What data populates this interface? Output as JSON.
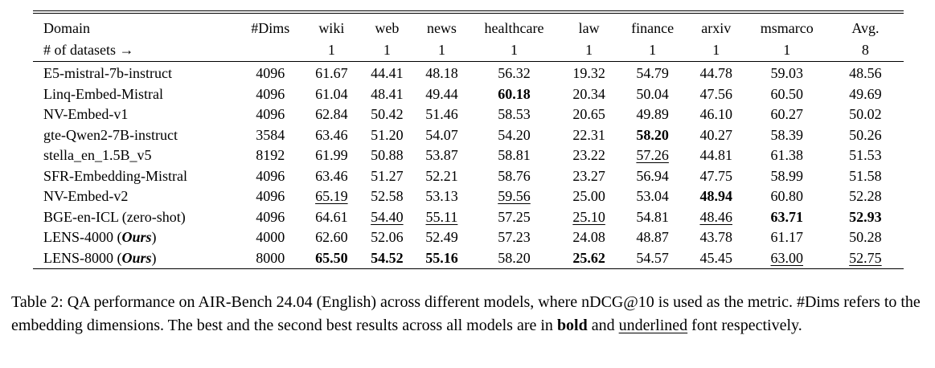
{
  "table": {
    "columns": [
      "Domain",
      "#Dims",
      "wiki",
      "web",
      "news",
      "healthcare",
      "law",
      "finance",
      "arxiv",
      "msmarco",
      "Avg."
    ],
    "datasets_label": "# of datasets →",
    "datasets_counts": [
      "",
      "1",
      "1",
      "1",
      "1",
      "1",
      "1",
      "1",
      "1",
      "8"
    ],
    "rows": [
      {
        "name": "E5-mistral-7b-instruct",
        "dims": "4096",
        "scores": [
          [
            "61.67",
            ""
          ],
          [
            "44.41",
            ""
          ],
          [
            "48.18",
            ""
          ],
          [
            "56.32",
            ""
          ],
          [
            "19.32",
            ""
          ],
          [
            "54.79",
            ""
          ],
          [
            "44.78",
            ""
          ],
          [
            "59.03",
            ""
          ],
          [
            "48.56",
            ""
          ]
        ]
      },
      {
        "name": "Linq-Embed-Mistral",
        "dims": "4096",
        "scores": [
          [
            "61.04",
            ""
          ],
          [
            "48.41",
            ""
          ],
          [
            "49.44",
            ""
          ],
          [
            "60.18",
            "b"
          ],
          [
            "20.34",
            ""
          ],
          [
            "50.04",
            ""
          ],
          [
            "47.56",
            ""
          ],
          [
            "60.50",
            ""
          ],
          [
            "49.69",
            ""
          ]
        ]
      },
      {
        "name": "NV-Embed-v1",
        "dims": "4096",
        "scores": [
          [
            "62.84",
            ""
          ],
          [
            "50.42",
            ""
          ],
          [
            "51.46",
            ""
          ],
          [
            "58.53",
            ""
          ],
          [
            "20.65",
            ""
          ],
          [
            "49.89",
            ""
          ],
          [
            "46.10",
            ""
          ],
          [
            "60.27",
            ""
          ],
          [
            "50.02",
            ""
          ]
        ]
      },
      {
        "name": "gte-Qwen2-7B-instruct",
        "dims": "3584",
        "scores": [
          [
            "63.46",
            ""
          ],
          [
            "51.20",
            ""
          ],
          [
            "54.07",
            ""
          ],
          [
            "54.20",
            ""
          ],
          [
            "22.31",
            ""
          ],
          [
            "58.20",
            "b"
          ],
          [
            "40.27",
            ""
          ],
          [
            "58.39",
            ""
          ],
          [
            "50.26",
            ""
          ]
        ]
      },
      {
        "name": "stella_en_1.5B_v5",
        "dims": "8192",
        "scores": [
          [
            "61.99",
            ""
          ],
          [
            "50.88",
            ""
          ],
          [
            "53.87",
            ""
          ],
          [
            "58.81",
            ""
          ],
          [
            "23.22",
            ""
          ],
          [
            "57.26",
            "u"
          ],
          [
            "44.81",
            ""
          ],
          [
            "61.38",
            ""
          ],
          [
            "51.53",
            ""
          ]
        ]
      },
      {
        "name": "SFR-Embedding-Mistral",
        "dims": "4096",
        "scores": [
          [
            "63.46",
            ""
          ],
          [
            "51.27",
            ""
          ],
          [
            "52.21",
            ""
          ],
          [
            "58.76",
            ""
          ],
          [
            "23.27",
            ""
          ],
          [
            "56.94",
            ""
          ],
          [
            "47.75",
            ""
          ],
          [
            "58.99",
            ""
          ],
          [
            "51.58",
            ""
          ]
        ]
      },
      {
        "name": "NV-Embed-v2",
        "dims": "4096",
        "scores": [
          [
            "65.19",
            "u"
          ],
          [
            "52.58",
            ""
          ],
          [
            "53.13",
            ""
          ],
          [
            "59.56",
            "u"
          ],
          [
            "25.00",
            ""
          ],
          [
            "53.04",
            ""
          ],
          [
            "48.94",
            "b"
          ],
          [
            "60.80",
            ""
          ],
          [
            "52.28",
            ""
          ]
        ]
      },
      {
        "name": "BGE-en-ICL (zero-shot)",
        "dims": "4096",
        "scores": [
          [
            "64.61",
            ""
          ],
          [
            "54.40",
            "u"
          ],
          [
            "55.11",
            "u"
          ],
          [
            "57.25",
            ""
          ],
          [
            "25.10",
            "u"
          ],
          [
            "54.81",
            ""
          ],
          [
            "48.46",
            "u"
          ],
          [
            "63.71",
            "b"
          ],
          [
            "52.93",
            "b"
          ]
        ]
      },
      {
        "name": "LENS-4000 (Ours)",
        "dims": "4000",
        "scores": [
          [
            "62.60",
            ""
          ],
          [
            "52.06",
            ""
          ],
          [
            "52.49",
            ""
          ],
          [
            "57.23",
            ""
          ],
          [
            "24.08",
            ""
          ],
          [
            "48.87",
            ""
          ],
          [
            "43.78",
            ""
          ],
          [
            "61.17",
            ""
          ],
          [
            "50.28",
            ""
          ]
        ]
      },
      {
        "name": "LENS-8000 (Ours)",
        "dims": "8000",
        "scores": [
          [
            "65.50",
            "b"
          ],
          [
            "54.52",
            "b"
          ],
          [
            "55.16",
            "b"
          ],
          [
            "58.20",
            ""
          ],
          [
            "25.62",
            "b"
          ],
          [
            "54.57",
            ""
          ],
          [
            "45.45",
            ""
          ],
          [
            "63.00",
            "u"
          ],
          [
            "52.75",
            "u"
          ]
        ]
      }
    ]
  },
  "caption": {
    "segments": [
      {
        "t": "Table 2: QA performance on AIR-Bench 24.04 (English) across different models, where nDCG@10 is used as the metric. #Dims refers to the embedding dimensions. The best and the second best results across all models are in ",
        "s": ""
      },
      {
        "t": "bold",
        "s": "b"
      },
      {
        "t": " and ",
        "s": ""
      },
      {
        "t": "underlined",
        "s": "u"
      },
      {
        "t": " font respectively.",
        "s": ""
      }
    ]
  }
}
